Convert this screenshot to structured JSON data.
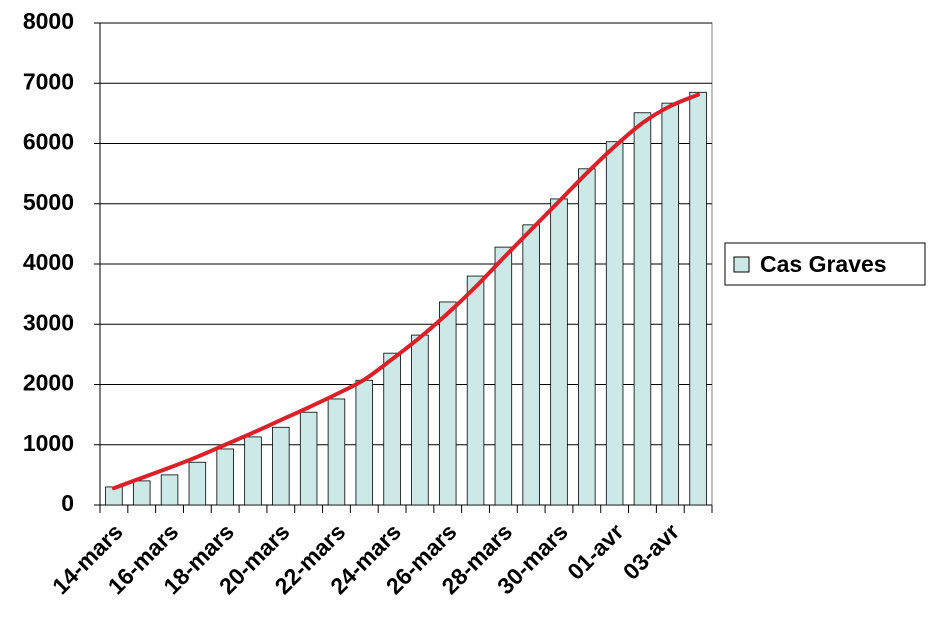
{
  "chart_data": {
    "type": "bar",
    "categories": [
      "14-mars",
      null,
      "16-mars",
      null,
      "18-mars",
      null,
      "20-mars",
      null,
      "22-mars",
      null,
      "24-mars",
      null,
      "26-mars",
      null,
      "28-mars",
      null,
      "30-mars",
      null,
      "01-avr",
      null,
      "03-avr",
      null
    ],
    "series": [
      {
        "name": "Cas Graves",
        "color": "#cce9e7",
        "values": [
          300,
          400,
          500,
          710,
          930,
          1130,
          1290,
          1540,
          1760,
          2070,
          2520,
          2820,
          3370,
          3800,
          4280,
          4650,
          5080,
          5580,
          6030,
          6510,
          6670,
          6850
        ]
      }
    ],
    "trend": {
      "color": "#dd2027",
      "values": [
        280,
        450,
        620,
        800,
        1000,
        1200,
        1410,
        1620,
        1840,
        2080,
        2420,
        2780,
        3180,
        3620,
        4100,
        4570,
        5040,
        5510,
        5950,
        6340,
        6620,
        6810
      ]
    },
    "ylim": [
      0,
      8000
    ],
    "yticks": [
      0,
      1000,
      2000,
      3000,
      4000,
      5000,
      6000,
      7000,
      8000
    ],
    "grid": true,
    "legend": "right"
  }
}
